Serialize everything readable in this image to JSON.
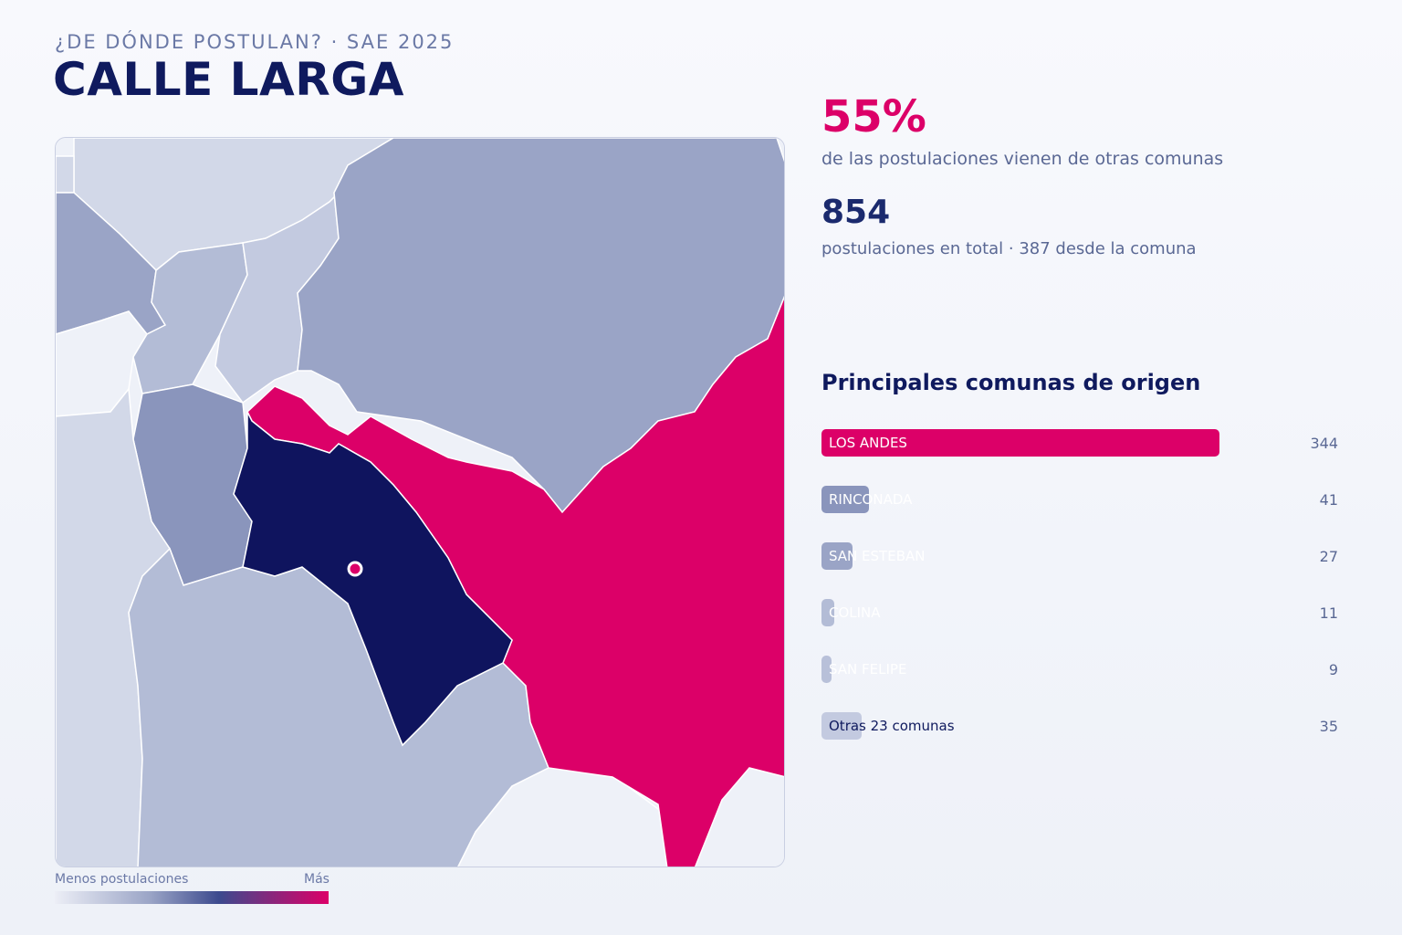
{
  "header": {
    "eyebrow": "¿DE DÓNDE POSTULAN? · SAE 2025",
    "title": "CALLE LARGA"
  },
  "stats": {
    "pct_value": "55%",
    "pct_caption": "de las postulaciones vienen de otras comunas",
    "total_value": "854",
    "total_caption": "postulaciones en total · 387 desde la comuna"
  },
  "ranking": {
    "title": "Principales comunas de origen",
    "max_value": 344,
    "items": [
      {
        "label": "LOS ANDES",
        "value": 344,
        "color": "#dc0068",
        "label_color": "#ffffff"
      },
      {
        "label": "RINCONADA",
        "value": 41,
        "color": "#8a95bc",
        "label_color": "#ffffff"
      },
      {
        "label": "SAN ESTEBAN",
        "value": 27,
        "color": "#9aa4c6",
        "label_color": "#ffffff"
      },
      {
        "label": "COLINA",
        "value": 11,
        "color": "#b3bcd6",
        "label_color": "#ffffff"
      },
      {
        "label": "SAN FELIPE",
        "value": 9,
        "color": "#b8c0d9",
        "label_color": "#ffffff"
      },
      {
        "label": "Otras 23 comunas",
        "value": 35,
        "color": "#c3cae0",
        "label_color": "#0f1a5e"
      }
    ]
  },
  "legend": {
    "min_label": "Menos postulaciones",
    "max_label": "Más"
  },
  "map": {
    "colors": {
      "highlight": "#0f145e",
      "top_origin": "#dc0068",
      "high": "#8a95bc",
      "mid": "#9aa4c6",
      "low": "#b3bcd6",
      "lower": "#c3cae0",
      "lowest": "#d2d8e8",
      "none": "#eef1f8"
    }
  }
}
